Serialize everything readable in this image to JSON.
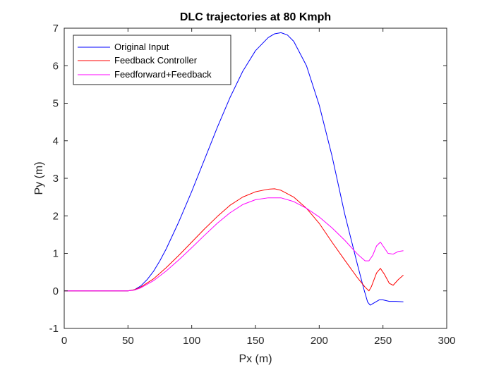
{
  "chart_data": {
    "type": "line",
    "title": "DLC trajectories at 80 Kmph",
    "xlabel": "Px (m)",
    "ylabel": "Py (m)",
    "xlim": [
      0,
      300
    ],
    "ylim": [
      -1,
      7
    ],
    "xticks": [
      0,
      50,
      100,
      150,
      200,
      250,
      300
    ],
    "yticks": [
      -1,
      0,
      1,
      2,
      3,
      4,
      5,
      6,
      7
    ],
    "grid": false,
    "legend_position": "top-left",
    "series": [
      {
        "name": "Original Input",
        "color": "#0000ff",
        "points": [
          [
            0,
            0
          ],
          [
            50,
            0
          ],
          [
            55,
            0.03
          ],
          [
            60,
            0.13
          ],
          [
            65,
            0.3
          ],
          [
            70,
            0.52
          ],
          [
            75,
            0.8
          ],
          [
            80,
            1.12
          ],
          [
            90,
            1.85
          ],
          [
            100,
            2.65
          ],
          [
            110,
            3.5
          ],
          [
            120,
            4.35
          ],
          [
            130,
            5.15
          ],
          [
            140,
            5.85
          ],
          [
            150,
            6.4
          ],
          [
            160,
            6.75
          ],
          [
            165,
            6.85
          ],
          [
            170,
            6.88
          ],
          [
            175,
            6.82
          ],
          [
            180,
            6.65
          ],
          [
            190,
            6.0
          ],
          [
            200,
            4.95
          ],
          [
            210,
            3.6
          ],
          [
            220,
            2.05
          ],
          [
            230,
            0.7
          ],
          [
            235,
            0.05
          ],
          [
            238,
            -0.3
          ],
          [
            240,
            -0.38
          ],
          [
            243,
            -0.32
          ],
          [
            247,
            -0.24
          ],
          [
            250,
            -0.24
          ],
          [
            255,
            -0.28
          ],
          [
            260,
            -0.28
          ],
          [
            266,
            -0.29
          ]
        ]
      },
      {
        "name": "Feedback Controller",
        "color": "#ff0000",
        "points": [
          [
            0,
            0
          ],
          [
            50,
            0
          ],
          [
            55,
            0.03
          ],
          [
            60,
            0.1
          ],
          [
            70,
            0.32
          ],
          [
            80,
            0.62
          ],
          [
            90,
            0.95
          ],
          [
            100,
            1.3
          ],
          [
            110,
            1.65
          ],
          [
            120,
            1.98
          ],
          [
            130,
            2.28
          ],
          [
            140,
            2.5
          ],
          [
            150,
            2.64
          ],
          [
            160,
            2.71
          ],
          [
            165,
            2.72
          ],
          [
            170,
            2.68
          ],
          [
            180,
            2.5
          ],
          [
            190,
            2.2
          ],
          [
            200,
            1.8
          ],
          [
            210,
            1.3
          ],
          [
            220,
            0.82
          ],
          [
            230,
            0.35
          ],
          [
            236,
            0.1
          ],
          [
            239,
            0.0
          ],
          [
            241,
            0.12
          ],
          [
            245,
            0.48
          ],
          [
            248,
            0.6
          ],
          [
            251,
            0.45
          ],
          [
            255,
            0.2
          ],
          [
            258,
            0.15
          ],
          [
            262,
            0.3
          ],
          [
            266,
            0.42
          ]
        ]
      },
      {
        "name": "Feedforward+Feedback",
        "color": "#ff00ff",
        "points": [
          [
            0,
            0
          ],
          [
            50,
            0
          ],
          [
            55,
            0.02
          ],
          [
            60,
            0.08
          ],
          [
            70,
            0.27
          ],
          [
            80,
            0.53
          ],
          [
            90,
            0.83
          ],
          [
            100,
            1.15
          ],
          [
            110,
            1.48
          ],
          [
            120,
            1.8
          ],
          [
            130,
            2.08
          ],
          [
            140,
            2.3
          ],
          [
            150,
            2.43
          ],
          [
            160,
            2.48
          ],
          [
            170,
            2.48
          ],
          [
            180,
            2.38
          ],
          [
            190,
            2.2
          ],
          [
            200,
            1.97
          ],
          [
            210,
            1.68
          ],
          [
            220,
            1.35
          ],
          [
            230,
            0.98
          ],
          [
            236,
            0.8
          ],
          [
            239,
            0.8
          ],
          [
            242,
            0.95
          ],
          [
            245,
            1.2
          ],
          [
            248,
            1.3
          ],
          [
            251,
            1.15
          ],
          [
            254,
            1.0
          ],
          [
            258,
            0.98
          ],
          [
            262,
            1.05
          ],
          [
            266,
            1.07
          ]
        ]
      }
    ]
  }
}
